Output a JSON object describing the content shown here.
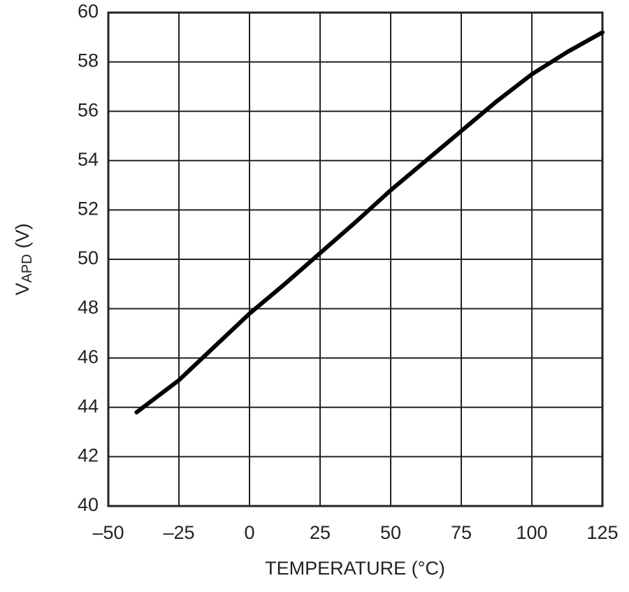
{
  "chart_data": {
    "type": "line",
    "x_label": "TEMPERATURE (°C)",
    "y_label": {
      "main": "V",
      "sub": "APD",
      "unit": "(V)"
    },
    "x": [
      -40,
      -25,
      -12.5,
      0,
      12.5,
      25,
      37.5,
      50,
      62.5,
      75,
      87.5,
      100,
      112.5,
      125
    ],
    "series": [
      {
        "color": "#000000",
        "values": [
          43.8,
          45.1,
          46.45,
          47.8,
          49.0,
          50.25,
          51.5,
          52.8,
          54.0,
          55.2,
          56.4,
          57.5,
          58.4,
          59.2
        ]
      }
    ],
    "xlim": [
      -50,
      125
    ],
    "ylim": [
      40,
      60
    ],
    "xticks": [
      {
        "value": -50,
        "label": "–50"
      },
      {
        "value": -25,
        "label": "–25"
      },
      0,
      25,
      50,
      75,
      100,
      125
    ],
    "yticks": [
      40,
      42,
      44,
      46,
      48,
      50,
      52,
      54,
      56,
      58,
      60
    ],
    "grid": true
  }
}
